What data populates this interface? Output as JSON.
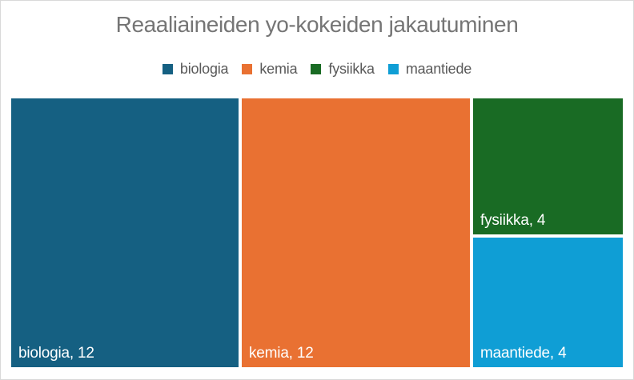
{
  "title": "Reaaliaineiden yo-kokeiden jakautuminen",
  "legend": {
    "position": "top",
    "items": [
      {
        "label": "biologia",
        "color": "#156082"
      },
      {
        "label": "kemia",
        "color": "#E97132"
      },
      {
        "label": "fysiikka",
        "color": "#196B24"
      },
      {
        "label": "maantiede",
        "color": "#0F9ED5"
      }
    ]
  },
  "chart_data": {
    "type": "treemap",
    "title": "Reaaliaineiden yo-kokeiden jakautuminen",
    "categories": [
      "biologia",
      "kemia",
      "fysiikka",
      "maantiede"
    ],
    "values": [
      12,
      12,
      4,
      4
    ],
    "legend_position": "top",
    "data_label_position": "bottom-left",
    "tiles": [
      {
        "category": "biologia",
        "value": 12,
        "label": "biologia, 12",
        "color": "#156082"
      },
      {
        "category": "kemia",
        "value": 12,
        "label": "kemia, 12",
        "color": "#E97132"
      },
      {
        "category": "fysiikka",
        "value": 4,
        "label": "fysiikka, 4",
        "color": "#196B24"
      },
      {
        "category": "maantiede",
        "value": 4,
        "label": "maantiede, 4",
        "color": "#0F9ED5"
      }
    ]
  },
  "colors": {
    "background": "#FFFFFF",
    "canvas_border": "#D9D9D9",
    "title_text": "#757575",
    "legend_text": "#595959",
    "data_label_text": "#FFFFFF"
  }
}
